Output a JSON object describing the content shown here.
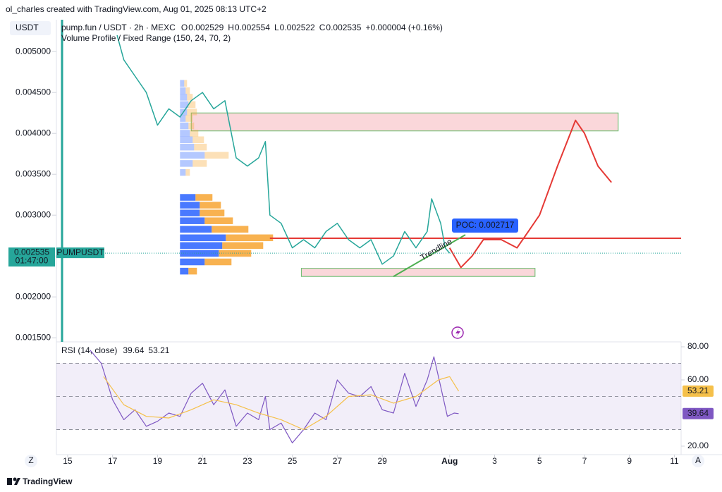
{
  "watermark": "ol_charles created with TradingView.com, Aug 01, 2025 08:13 UTC+2",
  "footer": "TradingView",
  "buttons": [
    "Z",
    "A"
  ],
  "chart_data": [
    {
      "type": "line",
      "title": "pump.fun / USDT · 2h · MEXC",
      "currency": "USDT",
      "ohlc": [
        {
          "label": "O",
          "value": 0.002529
        },
        {
          "label": "H",
          "value": 0.002554
        },
        {
          "label": "L",
          "value": 0.002522
        },
        {
          "label": "C",
          "value": 0.002535
        }
      ],
      "change": "+0.000004 (+0.16%)",
      "indicator": "Volume Profile / Fixed Range (150, 24, 70, 2)",
      "last_price": 0.002535,
      "countdown": "01:47:00",
      "symbol": "PUMPUSDT",
      "series": [
        {
          "color": "#26a69a",
          "x": [
            17.2,
            17.5,
            18,
            18.5,
            19,
            19.5,
            20,
            20.5,
            21,
            21.5,
            22,
            22.5,
            23,
            23.5,
            23.8,
            24,
            24.5,
            25,
            25.5,
            26,
            26.5,
            27,
            27.5,
            28,
            28.5,
            29,
            29.5,
            30,
            30.5,
            31,
            31.2,
            31.6,
            31.8,
            32
          ],
          "values": [
            0.0052,
            0.0049,
            0.0047,
            0.0045,
            0.0041,
            0.0043,
            0.0042,
            0.0044,
            0.0045,
            0.0043,
            0.0044,
            0.0037,
            0.0036,
            0.0037,
            0.0039,
            0.003,
            0.0029,
            0.0026,
            0.0027,
            0.0026,
            0.0028,
            0.0029,
            0.0027,
            0.0026,
            0.0027,
            0.0024,
            0.0025,
            0.0028,
            0.0026,
            0.0028,
            0.0032,
            0.0029,
            0.0026,
            0.002535
          ]
        },
        {
          "color": "#e53935",
          "x": [
            32,
            32.5,
            33,
            33.5,
            34.3,
            35,
            35.5,
            36,
            36.8,
            37.6,
            38,
            38.6,
            39.2
          ],
          "values": [
            0.0026,
            0.00236,
            0.0025,
            0.0027,
            0.0027,
            0.0026,
            0.0028,
            0.003,
            0.0036,
            0.00416,
            0.004,
            0.0036,
            0.0034
          ]
        }
      ],
      "zones": [
        {
          "x": [
            20.5,
            39.5
          ],
          "y": [
            0.00403,
            0.00425
          ],
          "color": "#f9d3d6",
          "border": "#66bb6a"
        },
        {
          "x": [
            25.4,
            35.8
          ],
          "y": [
            0.00225,
            0.00235
          ],
          "color": "#f9d3d6",
          "border": "#66bb6a"
        }
      ],
      "poc": {
        "value": 0.002717,
        "label": "POC: 0.002717",
        "start": 24,
        "color": "#e53935"
      },
      "trendline": {
        "label": "Trendline",
        "x": [
          29.5,
          32.7
        ],
        "y": [
          0.00225,
          0.00276
        ],
        "color": "#4caf50"
      },
      "volume_profile": {
        "start": 20,
        "groups": [
          {
            "opacity": 0.35,
            "prices": [
              0.00461,
              0.00452,
              0.00444,
              0.00435,
              0.00426,
              0.00418,
              0.00409,
              0.004,
              0.00392,
              0.00383,
              0.00373,
              0.00363,
              0.00352
            ],
            "up": [
              6,
              8,
              10,
              12,
              10,
              8,
              12,
              14,
              18,
              20,
              35,
              18,
              8
            ],
            "down": [
              4,
              6,
              8,
              10,
              14,
              10,
              8,
              12,
              16,
              18,
              34,
              20,
              6
            ]
          },
          {
            "opacity": 0.85,
            "prices": [
              0.003215,
              0.00312,
              0.003024,
              0.002929,
              0.002825,
              0.002721,
              0.002626,
              0.00253,
              0.002426,
              0.002313
            ],
            "up": [
              22,
              28,
              28,
              35,
              45,
              65,
              60,
              55,
              35,
              12
            ],
            "down": [
              24,
              30,
              35,
              40,
              52,
              67,
              58,
              46,
              38,
              12
            ]
          }
        ],
        "up_color": "#2962ff",
        "down_color": "#f7a531"
      },
      "xlim": [
        14.5,
        42.3
      ],
      "ylim": [
        0.00145,
        0.00539
      ],
      "yticks": [
        {
          "value": 0.0015,
          "label": "0.001500"
        },
        {
          "value": 0.002,
          "label": "0.002000"
        },
        {
          "value": 0.0025,
          "label": "0.002500"
        },
        {
          "value": 0.003,
          "label": "0.003000"
        },
        {
          "value": 0.0035,
          "label": "0.003500"
        },
        {
          "value": 0.004,
          "label": "0.004000"
        },
        {
          "value": 0.0045,
          "label": "0.004500"
        },
        {
          "value": 0.005,
          "label": "0.005000"
        }
      ]
    },
    {
      "type": "line",
      "title": "RSI (14, close)",
      "series": [
        {
          "color": "#7e57c2",
          "x": [
            16,
            16.5,
            17,
            17.5,
            18,
            18.5,
            19,
            19.5,
            20,
            20.5,
            21,
            21.5,
            22,
            22.5,
            23,
            23.5,
            23.8,
            24,
            24.5,
            25,
            25.5,
            26,
            26.5,
            27,
            27.5,
            28,
            28.5,
            29,
            29.5,
            30,
            30.5,
            31,
            31.3,
            31.6,
            31.9,
            32.2,
            32.4
          ],
          "values": [
            78,
            70,
            48,
            36,
            42,
            32,
            35,
            40,
            38,
            52,
            58,
            45,
            54,
            32,
            40,
            36,
            50,
            30,
            34,
            22,
            30,
            40,
            36,
            60,
            52,
            50,
            56,
            42,
            40,
            64,
            44,
            60,
            74,
            56,
            38,
            40,
            39.64
          ]
        },
        {
          "color": "#f5c04a",
          "x": [
            16.6,
            17.5,
            18.5,
            19.5,
            20.5,
            21.5,
            22.5,
            23.5,
            24.5,
            25.5,
            26.5,
            27.5,
            28.5,
            29.5,
            30.5,
            31.5,
            32,
            32.4
          ],
          "values": [
            62,
            45,
            38,
            37,
            42,
            48,
            45,
            40,
            36,
            30,
            38,
            50,
            51,
            46,
            50,
            60,
            62,
            53.21
          ]
        }
      ],
      "band": [
        30,
        70
      ],
      "levels": [
        30,
        50,
        70
      ],
      "xlim": [
        14.5,
        42.3
      ],
      "ylim": [
        17,
        81.7
      ],
      "yticks": [
        {
          "value": 20,
          "label": "20.00"
        },
        {
          "value": 60,
          "label": "60.00"
        },
        {
          "value": 80,
          "label": "80.00"
        }
      ],
      "xticks": [
        15,
        17,
        19,
        21,
        23,
        25,
        27,
        29,
        {
          "value": 32,
          "label": "Aug"
        },
        {
          "value": 34,
          "label": "3"
        },
        {
          "value": 36,
          "label": "5"
        },
        {
          "value": 38,
          "label": "7"
        },
        {
          "value": 40,
          "label": "9"
        },
        {
          "value": 42,
          "label": "11"
        }
      ]
    }
  ]
}
